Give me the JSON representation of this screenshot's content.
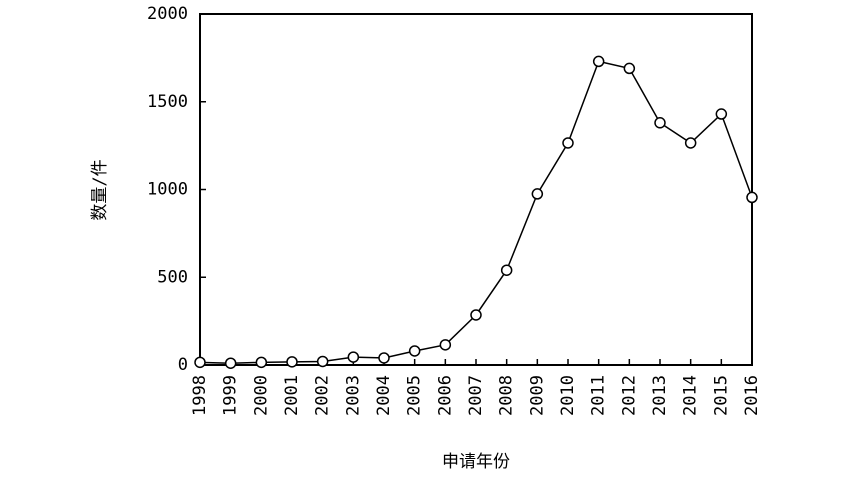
{
  "chart_data": {
    "type": "line",
    "xlabel": "申请年份",
    "ylabel": "数量/件",
    "x": [
      1998,
      1999,
      2000,
      2001,
      2002,
      2003,
      2004,
      2005,
      2006,
      2007,
      2008,
      2009,
      2010,
      2011,
      2012,
      2013,
      2014,
      2015,
      2016
    ],
    "series": [
      {
        "color": "#000000",
        "values": [
          15,
          10,
          15,
          18,
          20,
          45,
          40,
          80,
          115,
          285,
          540,
          975,
          1265,
          1730,
          1690,
          1380,
          1265,
          1430,
          955
        ]
      }
    ],
    "xlim": [
      1998,
      2016
    ],
    "xticks": [
      1998,
      1999,
      2000,
      2001,
      2002,
      2003,
      2004,
      2005,
      2006,
      2007,
      2008,
      2009,
      2010,
      2011,
      2012,
      2013,
      2014,
      2015,
      2016
    ],
    "ylim": [
      0,
      2000
    ],
    "yticks": [
      0,
      500,
      1000,
      1500,
      2000
    ],
    "grid": false
  }
}
